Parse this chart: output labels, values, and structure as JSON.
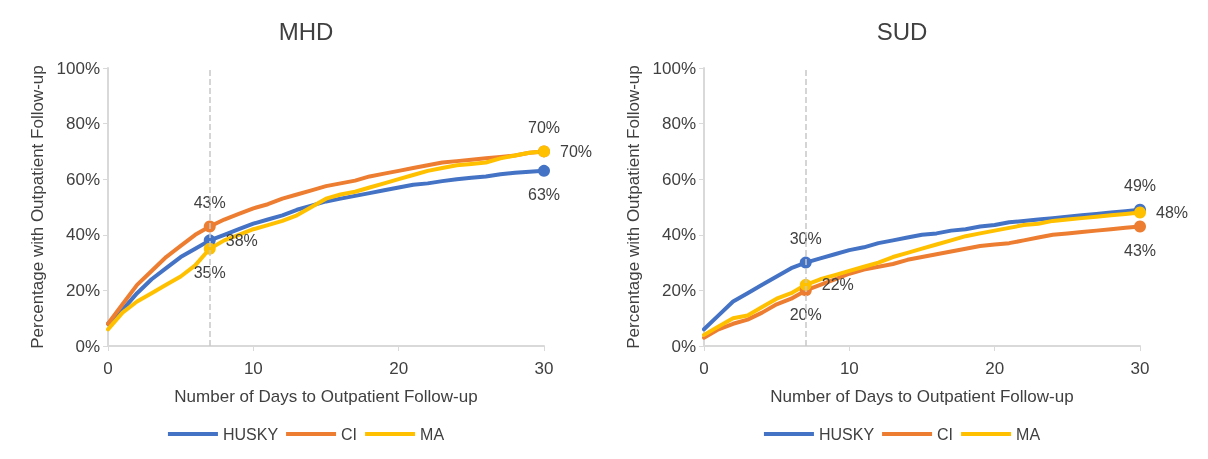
{
  "chart_data": [
    {
      "type": "line",
      "title": "MHD",
      "xlabel": "Number of Days to Outpatient Follow-up",
      "ylabel": "Percentage with Outpatient Follow-up",
      "x": [
        0,
        1,
        2,
        3,
        4,
        5,
        6,
        7,
        8,
        9,
        10,
        11,
        12,
        13,
        14,
        15,
        16,
        17,
        18,
        19,
        20,
        21,
        22,
        23,
        24,
        25,
        26,
        27,
        28,
        29,
        30
      ],
      "xlim": [
        0,
        30
      ],
      "xticks": [
        0,
        10,
        20,
        30
      ],
      "ylim": [
        0,
        100
      ],
      "yticks": [
        {
          "value": 0,
          "label": "0%"
        },
        {
          "value": 20,
          "label": "20%"
        },
        {
          "value": 40,
          "label": "40%"
        },
        {
          "value": 60,
          "label": "60%"
        },
        {
          "value": 80,
          "label": "80%"
        },
        {
          "value": 100,
          "label": "100%"
        }
      ],
      "grid": false,
      "legend": "bottom",
      "marker": "none",
      "line_style": "solid",
      "ref_lines": [
        {
          "axis": "x",
          "value": 7,
          "label": null,
          "color": "#c8c8c8",
          "line_style": "dashed"
        }
      ],
      "series": [
        {
          "name": "HUSKY",
          "color": "#4472c4",
          "values": [
            8,
            13,
            19,
            24,
            28,
            32,
            35,
            38,
            40,
            42,
            44,
            45.5,
            47,
            49,
            50.5,
            52,
            53,
            54,
            55,
            56,
            57,
            58,
            58.5,
            59.3,
            60,
            60.5,
            61,
            61.8,
            62.3,
            62.7,
            63
          ],
          "value_labels": [
            null,
            null,
            null,
            null,
            null,
            null,
            null,
            "38%",
            null,
            null,
            null,
            null,
            null,
            null,
            null,
            null,
            null,
            null,
            null,
            null,
            null,
            null,
            null,
            null,
            null,
            null,
            null,
            null,
            null,
            null,
            "63%"
          ]
        },
        {
          "name": "CI",
          "color": "#ed7d31",
          "values": [
            8,
            15,
            22,
            27,
            32,
            36,
            40,
            43,
            45.5,
            47.5,
            49.5,
            51,
            53,
            54.5,
            56,
            57.5,
            58.5,
            59.5,
            61,
            62,
            63,
            64,
            65,
            66,
            66.5,
            67,
            67.5,
            68,
            68.5,
            69.5,
            70
          ],
          "value_labels": [
            null,
            null,
            null,
            null,
            null,
            null,
            null,
            "43%",
            null,
            null,
            null,
            null,
            null,
            null,
            null,
            null,
            null,
            null,
            null,
            null,
            null,
            null,
            null,
            null,
            null,
            null,
            null,
            null,
            null,
            null,
            "70%"
          ]
        },
        {
          "name": "MA",
          "color": "#ffc000",
          "values": [
            6,
            12,
            16,
            19,
            22,
            25,
            29,
            35,
            38,
            40,
            42,
            43.5,
            45,
            47,
            50,
            53,
            54.5,
            55.5,
            57,
            58.5,
            60,
            61.5,
            63,
            64,
            65,
            65.5,
            66,
            67.5,
            68.5,
            69.5,
            70
          ],
          "value_labels": [
            null,
            null,
            null,
            null,
            null,
            null,
            null,
            "35%",
            null,
            null,
            null,
            null,
            null,
            null,
            null,
            null,
            null,
            null,
            null,
            null,
            null,
            null,
            null,
            null,
            null,
            null,
            null,
            null,
            null,
            null,
            "70%"
          ]
        }
      ]
    },
    {
      "type": "line",
      "title": "SUD",
      "xlabel": "Number of Days to Outpatient Follow-up",
      "ylabel": "Percentage with Outpatient Follow-up",
      "x": [
        0,
        1,
        2,
        3,
        4,
        5,
        6,
        7,
        8,
        9,
        10,
        11,
        12,
        13,
        14,
        15,
        16,
        17,
        18,
        19,
        20,
        21,
        22,
        23,
        24,
        25,
        26,
        27,
        28,
        29,
        30
      ],
      "xlim": [
        0,
        30
      ],
      "xticks": [
        0,
        10,
        20,
        30
      ],
      "ylim": [
        0,
        100
      ],
      "yticks": [
        {
          "value": 0,
          "label": "0%"
        },
        {
          "value": 20,
          "label": "20%"
        },
        {
          "value": 40,
          "label": "40%"
        },
        {
          "value": 60,
          "label": "60%"
        },
        {
          "value": 80,
          "label": "80%"
        },
        {
          "value": 100,
          "label": "100%"
        }
      ],
      "grid": false,
      "legend": "bottom",
      "marker": "none",
      "line_style": "solid",
      "ref_lines": [
        {
          "axis": "x",
          "value": 7,
          "label": null,
          "color": "#c8c8c8",
          "line_style": "dashed"
        }
      ],
      "series": [
        {
          "name": "HUSKY",
          "color": "#4472c4",
          "values": [
            6,
            11,
            16,
            19,
            22,
            25,
            28,
            30,
            31.5,
            33,
            34.5,
            35.5,
            37,
            38,
            39,
            40,
            40.5,
            41.5,
            42,
            43,
            43.5,
            44.5,
            45,
            45.5,
            46,
            46.5,
            47,
            47.5,
            48,
            48.5,
            49
          ],
          "value_labels": [
            null,
            null,
            null,
            null,
            null,
            null,
            null,
            "30%",
            null,
            null,
            null,
            null,
            null,
            null,
            null,
            null,
            null,
            null,
            null,
            null,
            null,
            null,
            null,
            null,
            null,
            null,
            null,
            null,
            null,
            null,
            "49%"
          ]
        },
        {
          "name": "CI",
          "color": "#ed7d31",
          "values": [
            3,
            6,
            8,
            9.5,
            12,
            15,
            17,
            20,
            22,
            24,
            26,
            27.5,
            28.5,
            29.5,
            31,
            32,
            33,
            34,
            35,
            36,
            36.5,
            37,
            38,
            39,
            40,
            40.5,
            41,
            41.5,
            42,
            42.5,
            43
          ],
          "value_labels": [
            null,
            null,
            null,
            null,
            null,
            null,
            null,
            "20%",
            null,
            null,
            null,
            null,
            null,
            null,
            null,
            null,
            null,
            null,
            null,
            null,
            null,
            null,
            null,
            null,
            null,
            null,
            null,
            null,
            null,
            null,
            "43%"
          ]
        },
        {
          "name": "MA",
          "color": "#ffc000",
          "values": [
            4,
            7,
            10,
            11,
            14,
            17,
            19,
            22,
            24,
            25.5,
            27,
            28.5,
            30,
            32,
            33.5,
            35,
            36.5,
            38,
            39.5,
            40.5,
            41.5,
            42.5,
            43.5,
            44,
            45,
            45.5,
            46,
            46.5,
            47,
            47.5,
            48
          ],
          "value_labels": [
            null,
            null,
            null,
            null,
            null,
            null,
            null,
            "22%",
            null,
            null,
            null,
            null,
            null,
            null,
            null,
            null,
            null,
            null,
            null,
            null,
            null,
            null,
            null,
            null,
            null,
            null,
            null,
            null,
            null,
            null,
            "48%"
          ]
        }
      ]
    }
  ]
}
